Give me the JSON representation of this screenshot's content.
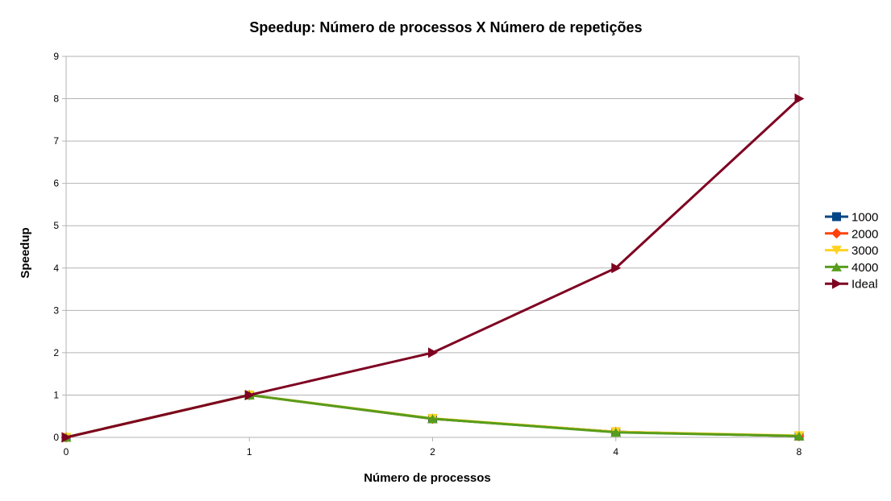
{
  "chart_data": {
    "type": "line",
    "title": "Speedup: Número de processos X Número de repetições",
    "xlabel": "Número de processos",
    "ylabel": "Speedup",
    "categories": [
      "0",
      "1",
      "2",
      "4",
      "8"
    ],
    "ylim": [
      0,
      9
    ],
    "yticks": [
      "0",
      "1",
      "2",
      "3",
      "4",
      "5",
      "6",
      "7",
      "8",
      "9"
    ],
    "grid": "horizontal",
    "legend_position": "right",
    "series": [
      {
        "name": "1000",
        "values": [
          0,
          1,
          0.44,
          0.13,
          0.03
        ],
        "color": "#004586",
        "marker": "square"
      },
      {
        "name": "2000",
        "values": [
          0,
          1,
          0.44,
          0.13,
          0.03
        ],
        "color": "#ff420e",
        "marker": "diamond"
      },
      {
        "name": "3000",
        "values": [
          0,
          1,
          0.45,
          0.13,
          0.04
        ],
        "color": "#ffd320",
        "marker": "triangle-down"
      },
      {
        "name": "4000",
        "values": [
          0,
          1,
          0.44,
          0.12,
          0.03
        ],
        "color": "#579d1c",
        "marker": "triangle-up"
      },
      {
        "name": "Ideal",
        "values": [
          0,
          1,
          2,
          4,
          8
        ],
        "color": "#7e0021",
        "marker": "triangle-right"
      }
    ]
  }
}
